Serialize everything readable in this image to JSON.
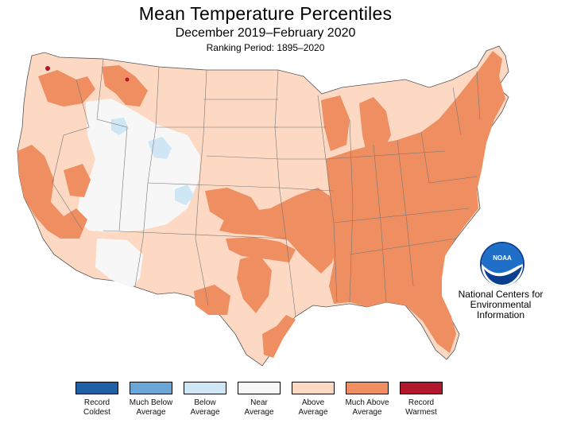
{
  "title": "Mean Temperature Percentiles",
  "subtitle": "December 2019–February 2020",
  "ranking_period": "Ranking Period: 1895–2020",
  "organization": {
    "logo_text": "NOAA",
    "name": "National Centers for Environmental Information"
  },
  "legend": [
    {
      "label": "Record Coldest",
      "color": "#1f5fa6"
    },
    {
      "label": "Much Below Average",
      "color": "#6aa7d6"
    },
    {
      "label": "Below Average",
      "color": "#cfe6f5"
    },
    {
      "label": "Near Average",
      "color": "#f7f7f7"
    },
    {
      "label": "Above Average",
      "color": "#fdd9c3"
    },
    {
      "label": "Much Above Average",
      "color": "#ef8f61"
    },
    {
      "label": "Record Warmest",
      "color": "#b2182b"
    }
  ]
}
